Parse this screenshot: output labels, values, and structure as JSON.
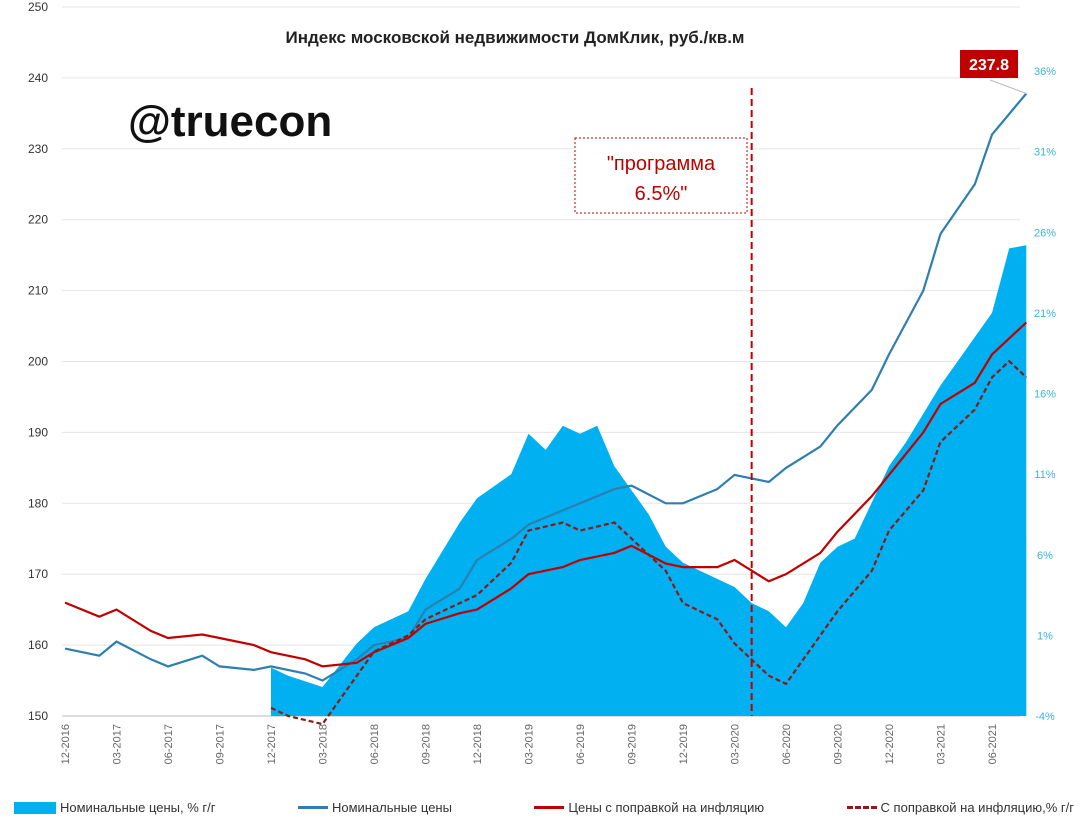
{
  "chart_data": {
    "type": "line",
    "title": "Индекс московской недвижимости ДомКлик, руб./кв.м",
    "watermark": "@truecon",
    "annotation": "\"программа 6.5%\"",
    "annotation_lines": [
      "\"программа",
      "6.5%\""
    ],
    "end_label": "237.8",
    "ylim": [
      150,
      250
    ],
    "y2lim": [
      -4,
      36
    ],
    "yticks": [
      "150",
      "160",
      "170",
      "180",
      "190",
      "200",
      "210",
      "220",
      "230",
      "240",
      "250"
    ],
    "y2ticks": [
      "-4%",
      "1%",
      "6%",
      "11%",
      "16%",
      "21%",
      "26%",
      "31%",
      "36%"
    ],
    "xticks": [
      "12-2016",
      "03-2017",
      "06-2017",
      "09-2017",
      "12-2017",
      "03-2018",
      "06-2018",
      "09-2018",
      "12-2018",
      "03-2019",
      "06-2019",
      "09-2019",
      "12-2019",
      "03-2020",
      "06-2020",
      "09-2020",
      "12-2020",
      "03-2021",
      "06-2021"
    ],
    "program_date": "2020-04",
    "series": [
      {
        "name": "Номинальные цены, % г/г",
        "axis": "right",
        "kind": "area",
        "color": "#00b0f0",
        "x": [
          "2017-12",
          "2018-01",
          "2018-03",
          "2018-05",
          "2018-06",
          "2018-08",
          "2018-09",
          "2018-11",
          "2018-12",
          "2019-02",
          "2019-03",
          "2019-04",
          "2019-05",
          "2019-06",
          "2019-07",
          "2019-08",
          "2019-10",
          "2019-11",
          "2019-12",
          "2020-01",
          "2020-03",
          "2020-04",
          "2020-05",
          "2020-06",
          "2020-07",
          "2020-08",
          "2020-09",
          "2020-10",
          "2020-12",
          "2021-01",
          "2021-03",
          "2021-04",
          "2021-06",
          "2021-07",
          "2021-08"
        ],
        "values": [
          -1,
          -1.5,
          -2.2,
          0.5,
          1.5,
          2.5,
          4.5,
          8,
          9.5,
          11,
          13.5,
          12.5,
          14,
          13.5,
          14,
          11.5,
          8.5,
          6.5,
          5.5,
          5,
          4,
          3,
          2.5,
          1.5,
          3,
          5.5,
          6.5,
          7,
          11.5,
          13,
          16.5,
          18,
          21,
          25,
          25.2
        ]
      },
      {
        "name": "Номинальные цены",
        "axis": "left",
        "kind": "line",
        "color": "#2e7fb0",
        "dash": false,
        "x": [
          "2016-12",
          "2017-02",
          "2017-03",
          "2017-05",
          "2017-06",
          "2017-08",
          "2017-09",
          "2017-11",
          "2017-12",
          "2018-02",
          "2018-03",
          "2018-05",
          "2018-06",
          "2018-08",
          "2018-09",
          "2018-11",
          "2018-12",
          "2019-02",
          "2019-03",
          "2019-05",
          "2019-06",
          "2019-08",
          "2019-09",
          "2019-11",
          "2019-12",
          "2020-02",
          "2020-03",
          "2020-05",
          "2020-06",
          "2020-08",
          "2020-09",
          "2020-11",
          "2020-12",
          "2021-02",
          "2021-03",
          "2021-05",
          "2021-06",
          "2021-08"
        ],
        "values": [
          159.5,
          158.5,
          160.5,
          158,
          157,
          158.5,
          157,
          156.5,
          157,
          156,
          155,
          158,
          160,
          161,
          165,
          168,
          172,
          175,
          177,
          179,
          180,
          182,
          182.5,
          180,
          180,
          182,
          184,
          183,
          185,
          188,
          191,
          196,
          201,
          210,
          218,
          225,
          232,
          237.8
        ]
      },
      {
        "name": "Цены с поправкой на инфляцию",
        "axis": "left",
        "kind": "line",
        "color": "#c00000",
        "dash": false,
        "x": [
          "2016-12",
          "2017-02",
          "2017-03",
          "2017-05",
          "2017-06",
          "2017-08",
          "2017-09",
          "2017-11",
          "2017-12",
          "2018-02",
          "2018-03",
          "2018-05",
          "2018-06",
          "2018-08",
          "2018-09",
          "2018-11",
          "2018-12",
          "2019-02",
          "2019-03",
          "2019-05",
          "2019-06",
          "2019-08",
          "2019-09",
          "2019-11",
          "2019-12",
          "2020-02",
          "2020-03",
          "2020-05",
          "2020-06",
          "2020-08",
          "2020-09",
          "2020-11",
          "2020-12",
          "2021-02",
          "2021-03",
          "2021-05",
          "2021-06",
          "2021-08"
        ],
        "values": [
          166,
          164,
          165,
          162,
          161,
          161.5,
          161,
          160,
          159,
          158,
          157,
          157.5,
          159,
          161,
          163,
          164.5,
          165,
          168,
          170,
          171,
          172,
          173,
          174,
          171.5,
          171,
          171,
          172,
          169,
          170,
          173,
          176,
          181,
          184,
          190,
          194,
          197,
          201,
          205.5
        ]
      },
      {
        "name": "С поправкой на инфляцию,% г/г",
        "axis": "right",
        "kind": "line",
        "color": "#8b1a1a",
        "dash": true,
        "x": [
          "2017-12",
          "2018-01",
          "2018-03",
          "2018-05",
          "2018-06",
          "2018-08",
          "2018-09",
          "2018-11",
          "2018-12",
          "2019-02",
          "2019-03",
          "2019-05",
          "2019-06",
          "2019-08",
          "2019-09",
          "2019-11",
          "2019-12",
          "2020-02",
          "2020-03",
          "2020-05",
          "2020-06",
          "2020-08",
          "2020-09",
          "2020-11",
          "2020-12",
          "2021-02",
          "2021-03",
          "2021-05",
          "2021-06",
          "2021-07",
          "2021-08"
        ],
        "values": [
          -3.5,
          -4,
          -4.5,
          -1.5,
          0,
          1,
          2,
          3,
          3.5,
          5.5,
          7.5,
          8,
          7.5,
          8,
          7,
          5,
          3,
          2,
          0.5,
          -1.5,
          -2,
          1,
          2.5,
          5,
          7.5,
          10,
          13,
          15,
          17,
          18,
          17
        ]
      }
    ]
  }
}
